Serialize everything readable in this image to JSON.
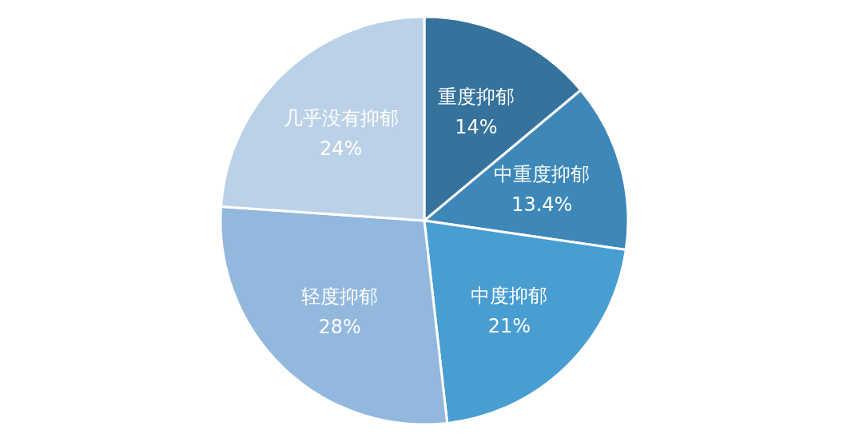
{
  "chart_data": {
    "type": "pie",
    "categories": [
      "重度抑郁",
      "中重度抑郁",
      "中度抑郁",
      "轻度抑郁",
      "几乎没有抑郁"
    ],
    "values": [
      14,
      13.4,
      21,
      28,
      24
    ],
    "colors": [
      "#35729c",
      "#3d88b9",
      "#489dd1",
      "#92b8de",
      "#bbd1e7"
    ],
    "value_labels": [
      "14%",
      "13.4%",
      "21%",
      "28%",
      "24%"
    ]
  }
}
